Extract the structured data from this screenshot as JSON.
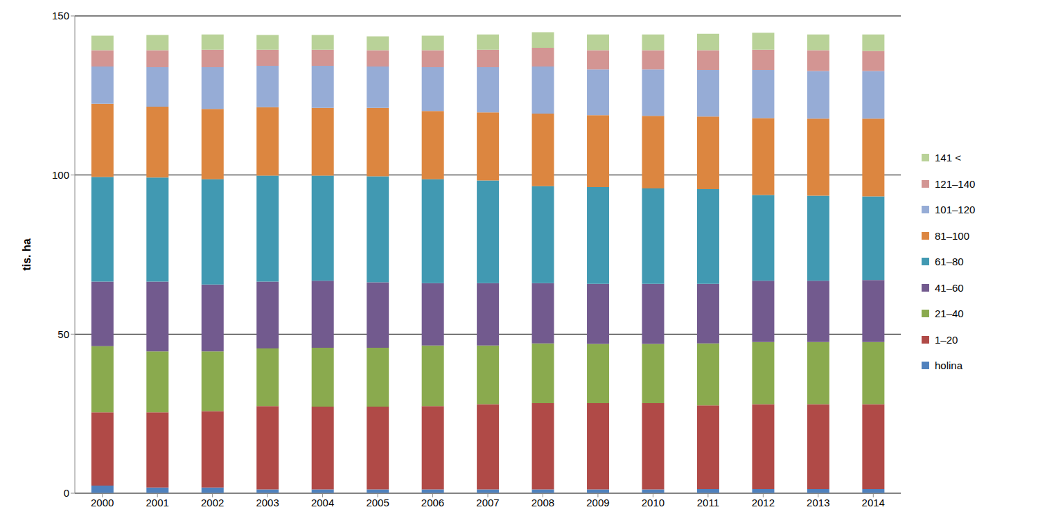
{
  "chart_data": {
    "type": "bar",
    "stacked": true,
    "grid": true,
    "legend": "right",
    "y_label": "tis. ha",
    "categories": [
      "2000",
      "2001",
      "2002",
      "2003",
      "2004",
      "2005",
      "2006",
      "2007",
      "2008",
      "2009",
      "2010",
      "2011",
      "2012",
      "2013",
      "2014"
    ],
    "ylim": [
      0,
      150
    ],
    "yticks": [
      0,
      50,
      100,
      150
    ],
    "series": [
      {
        "name": "holina",
        "color": "#4f81bd",
        "values": [
          2.4,
          1.8,
          1.8,
          1.2,
          1.2,
          1.2,
          1.2,
          1.2,
          1.2,
          1.2,
          1.2,
          1.3,
          1.3,
          1.3,
          1.3
        ]
      },
      {
        "name": "1–20",
        "color": "#b04a47",
        "values": [
          23.0,
          23.6,
          24.0,
          26.2,
          26.0,
          26.0,
          26.2,
          26.8,
          27.1,
          27.1,
          27.1,
          26.3,
          26.7,
          26.7,
          26.7
        ]
      },
      {
        "name": "21–40",
        "color": "#8aaa4e",
        "values": [
          20.8,
          19.2,
          18.8,
          18.1,
          18.5,
          18.5,
          19.0,
          18.4,
          18.8,
          18.6,
          18.6,
          19.5,
          19.5,
          19.5,
          19.5
        ]
      },
      {
        "name": "41–60",
        "color": "#725a8e",
        "values": [
          20.3,
          21.9,
          21.0,
          21.0,
          21.1,
          20.6,
          19.6,
          19.6,
          18.9,
          18.9,
          18.9,
          18.7,
          19.3,
          19.3,
          19.5
        ]
      },
      {
        "name": "61–80",
        "color": "#4199b2",
        "values": [
          32.9,
          32.7,
          33.1,
          33.3,
          33.0,
          33.3,
          32.7,
          32.3,
          30.5,
          30.4,
          30.0,
          29.8,
          26.9,
          26.7,
          26.3
        ]
      },
      {
        "name": "81–100",
        "color": "#dc8640",
        "values": [
          23.0,
          22.3,
          22.1,
          21.5,
          21.3,
          21.5,
          21.4,
          21.4,
          22.8,
          22.6,
          22.8,
          22.8,
          24.2,
          24.2,
          24.4
        ]
      },
      {
        "name": "101–120",
        "color": "#96acd6",
        "values": [
          11.7,
          12.4,
          13.1,
          13.0,
          13.2,
          13.0,
          13.8,
          14.2,
          14.8,
          14.4,
          14.6,
          14.6,
          15.1,
          15.0,
          15.0
        ]
      },
      {
        "name": "121–140",
        "color": "#d39593",
        "values": [
          5.1,
          5.3,
          5.5,
          5.1,
          5.1,
          5.1,
          5.3,
          5.5,
          5.9,
          6.0,
          6.0,
          6.2,
          6.4,
          6.5,
          6.3
        ]
      },
      {
        "name": "141 <",
        "color": "#b9d298",
        "values": [
          4.6,
          4.8,
          4.8,
          4.6,
          4.6,
          4.4,
          4.6,
          4.8,
          4.9,
          5.0,
          5.0,
          5.2,
          5.3,
          5.0,
          5.2
        ]
      }
    ]
  }
}
